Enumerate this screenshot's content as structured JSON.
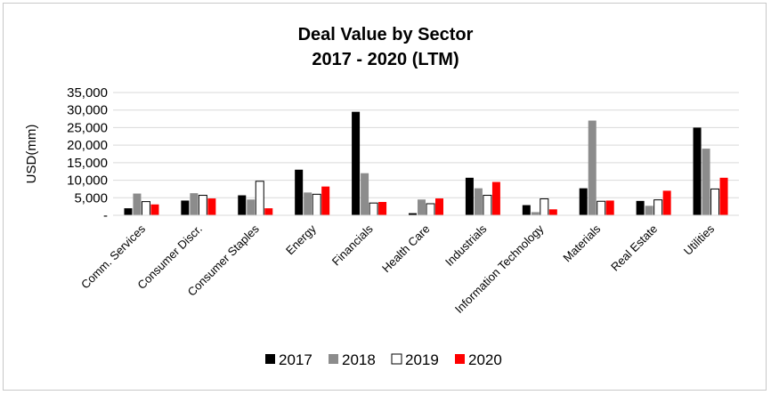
{
  "chart_data": {
    "type": "bar",
    "title": "Deal Value by Sector",
    "subtitle": "2017 - 2020 (LTM)",
    "xlabel": "",
    "ylabel": "USD(mm)",
    "ylim": [
      0,
      35000
    ],
    "y_ticks": [
      "-",
      "5,000",
      "10,000",
      "15,000",
      "20,000",
      "25,000",
      "30,000",
      "35,000"
    ],
    "grid": true,
    "legend_position": "bottom",
    "categories": [
      "Comm. Services",
      "Consumer Discr.",
      "Consumer Staples",
      "Energy",
      "Financials",
      "Health Care",
      "Industrials",
      "Information Technology",
      "Materials",
      "Real Estate",
      "Utilities"
    ],
    "series": [
      {
        "name": "2017",
        "color": "#000000",
        "outline": "#000000",
        "values": [
          2000,
          4200,
          5700,
          13000,
          29500,
          600,
          10700,
          2900,
          7700,
          4100,
          25000
        ]
      },
      {
        "name": "2018",
        "color": "#8c8c8c",
        "outline": "#8c8c8c",
        "values": [
          6200,
          6300,
          4500,
          6500,
          12000,
          4500,
          7700,
          900,
          27000,
          2700,
          19000
        ]
      },
      {
        "name": "2019",
        "color": "#ffffff",
        "outline": "#000000",
        "values": [
          3900,
          5700,
          9700,
          6000,
          3500,
          3300,
          5700,
          4700,
          4000,
          4400,
          7500
        ]
      },
      {
        "name": "2020",
        "color": "#ff0000",
        "outline": "#ff0000",
        "values": [
          3100,
          4800,
          2000,
          8200,
          3800,
          4800,
          9500,
          1700,
          4200,
          7000,
          10700
        ]
      }
    ]
  }
}
